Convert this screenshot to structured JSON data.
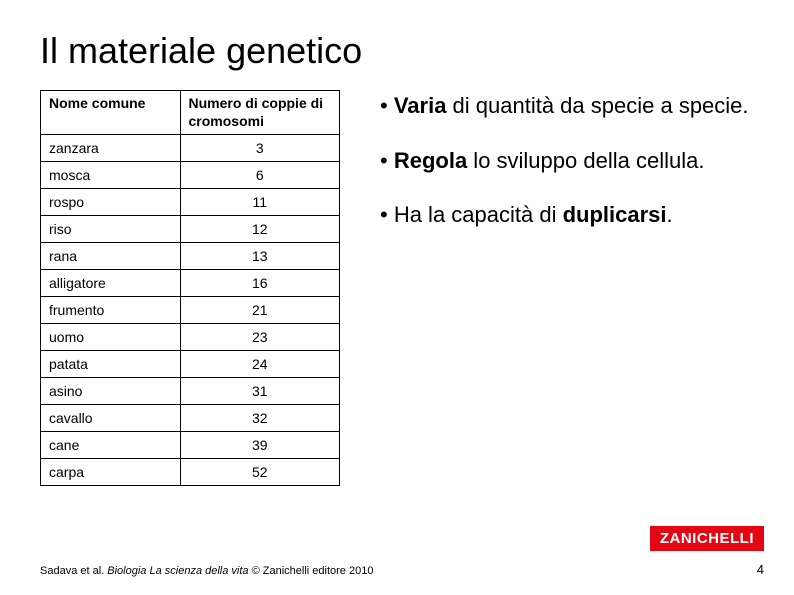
{
  "title": "Il materiale genetico",
  "table": {
    "header_col1": "Nome comune",
    "header_col2": "Numero di coppie di cromosomi",
    "rows": [
      {
        "name": "zanzara",
        "value": "3"
      },
      {
        "name": "mosca",
        "value": "6"
      },
      {
        "name": "rospo",
        "value": "11"
      },
      {
        "name": "riso",
        "value": "12"
      },
      {
        "name": "rana",
        "value": "13"
      },
      {
        "name": "alligatore",
        "value": "16"
      },
      {
        "name": "frumento",
        "value": "21"
      },
      {
        "name": "uomo",
        "value": "23"
      },
      {
        "name": "patata",
        "value": "24"
      },
      {
        "name": "asino",
        "value": "31"
      },
      {
        "name": "cavallo",
        "value": "32"
      },
      {
        "name": "cane",
        "value": "39"
      },
      {
        "name": "carpa",
        "value": "52"
      }
    ]
  },
  "bullets": {
    "b1_pre": "• ",
    "b1_bold": "Varia",
    "b1_rest": " di quantità da specie a specie.",
    "b2_pre": "• ",
    "b2_bold": "Regola",
    "b2_rest": " lo sviluppo della cellula.",
    "b3_pre": "• Ha la capacità di ",
    "b3_bold": "duplicarsi",
    "b3_rest": "."
  },
  "footer": {
    "author": "Sadava et al. ",
    "italic": "Biologia La scienza della vita",
    "rest": " © Zanichelli editore 2010"
  },
  "logo_text": "ZANICHELLI",
  "page_number": "4",
  "colors": {
    "logo_bg": "#e30613",
    "logo_fg": "#ffffff",
    "text": "#000000",
    "bg": "#ffffff"
  }
}
